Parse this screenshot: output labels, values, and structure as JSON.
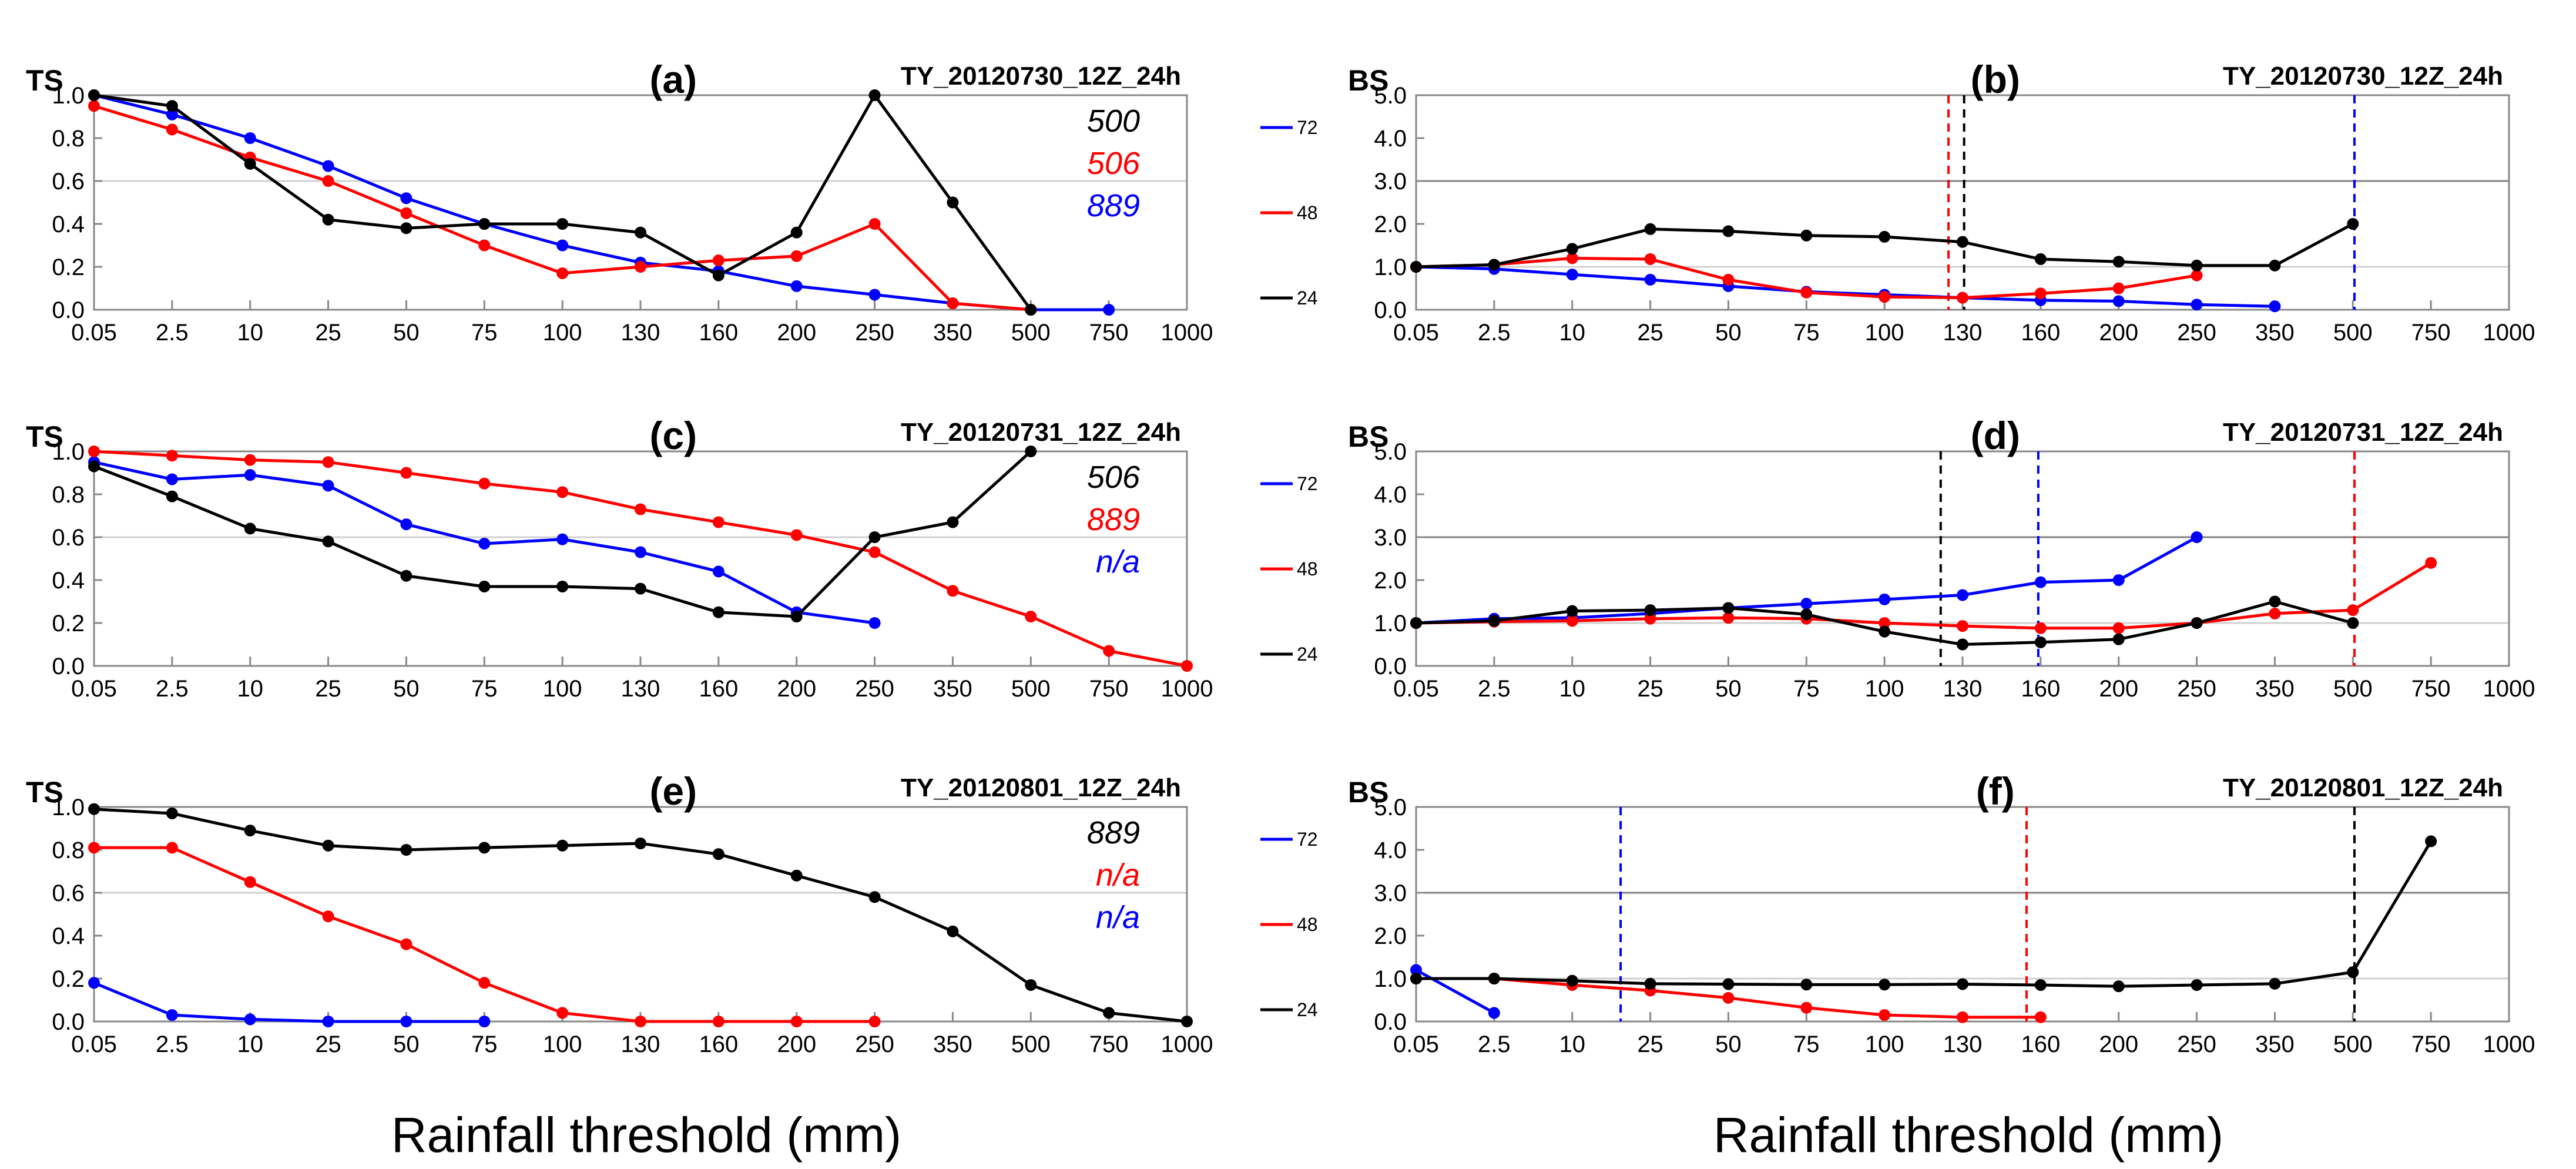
{
  "colors": {
    "72": "#0000ff",
    "48": "#ff0000",
    "24": "#000000",
    "axis": "#888888",
    "grid": "#d0d0d0",
    "refline": "#808080"
  },
  "xlabels": {
    "left": "Rainfall threshold (mm)",
    "right": "Rainfall threshold (mm)"
  },
  "chart_data": [
    {
      "id": "a",
      "type": "line",
      "title": "TS",
      "panel_label": "(a)",
      "run": "TY_20120730_12Z_24h",
      "categories": [
        "0.05",
        "2.5",
        "10",
        "25",
        "50",
        "75",
        "100",
        "130",
        "160",
        "200",
        "250",
        "350",
        "500",
        "750",
        "1000"
      ],
      "ylim": [
        0,
        1.0
      ],
      "yticks": [
        "0.0",
        "0.2",
        "0.4",
        "0.6",
        "0.8",
        "1.0"
      ],
      "grid_y": [
        0.6
      ],
      "ref_y": null,
      "annotations": [
        {
          "text": "500",
          "color": "#000000"
        },
        {
          "text": "506",
          "color": "#ff0000"
        },
        {
          "text": "889",
          "color": "#0000ff"
        }
      ],
      "legend": [
        "72",
        "48",
        "24"
      ],
      "vlines": [],
      "series": [
        {
          "name": "72",
          "color": "#0000ff",
          "values": [
            1.0,
            0.91,
            0.8,
            0.67,
            0.52,
            0.4,
            0.3,
            0.22,
            0.18,
            0.11,
            0.07,
            0.03,
            0.0,
            0.0,
            null
          ]
        },
        {
          "name": "48",
          "color": "#ff0000",
          "values": [
            0.95,
            0.84,
            0.71,
            0.6,
            0.45,
            0.3,
            0.17,
            0.2,
            0.23,
            0.25,
            0.4,
            0.03,
            0.0,
            null,
            null
          ]
        },
        {
          "name": "24",
          "color": "#000000",
          "values": [
            1.0,
            0.95,
            0.68,
            0.42,
            0.38,
            0.4,
            0.4,
            0.36,
            0.16,
            0.36,
            1.0,
            0.5,
            0.0,
            null,
            null
          ]
        }
      ]
    },
    {
      "id": "b",
      "type": "line",
      "title": "BS",
      "panel_label": "(b)",
      "run": "TY_20120730_12Z_24h",
      "categories": [
        "0.05",
        "2.5",
        "10",
        "25",
        "50",
        "75",
        "100",
        "130",
        "160",
        "200",
        "250",
        "350",
        "500",
        "750",
        "1000"
      ],
      "ylim": [
        0,
        5.0
      ],
      "yticks": [
        "0.0",
        "1.0",
        "2.0",
        "3.0",
        "4.0",
        "5.0"
      ],
      "grid_y": [
        1.0
      ],
      "ref_y": 3.0,
      "annotations": [],
      "legend": [],
      "vlines": [
        {
          "x": 6.82,
          "color": "#ff0000"
        },
        {
          "x": 7.02,
          "color": "#000000"
        },
        {
          "x": 12.02,
          "color": "#0000ff"
        }
      ],
      "series": [
        {
          "name": "72",
          "color": "#0000ff",
          "values": [
            1.0,
            0.95,
            0.82,
            0.7,
            0.55,
            0.42,
            0.35,
            0.28,
            0.22,
            0.2,
            0.12,
            0.08,
            null,
            null,
            null
          ]
        },
        {
          "name": "48",
          "color": "#ff0000",
          "values": [
            1.0,
            1.05,
            1.2,
            1.18,
            0.7,
            0.4,
            0.3,
            0.28,
            0.38,
            0.5,
            0.8,
            null,
            null,
            null,
            null
          ]
        },
        {
          "name": "24",
          "color": "#000000",
          "values": [
            1.0,
            1.05,
            1.42,
            1.88,
            1.83,
            1.73,
            1.7,
            1.58,
            1.18,
            1.12,
            1.03,
            1.03,
            2.0,
            null,
            null
          ]
        }
      ]
    },
    {
      "id": "c",
      "type": "line",
      "title": "TS",
      "panel_label": "(c)",
      "run": "TY_20120731_12Z_24h",
      "categories": [
        "0.05",
        "2.5",
        "10",
        "25",
        "50",
        "75",
        "100",
        "130",
        "160",
        "200",
        "250",
        "350",
        "500",
        "750",
        "1000"
      ],
      "ylim": [
        0,
        1.0
      ],
      "yticks": [
        "0.0",
        "0.2",
        "0.4",
        "0.6",
        "0.8",
        "1.0"
      ],
      "grid_y": [
        0.6
      ],
      "ref_y": null,
      "annotations": [
        {
          "text": "506",
          "color": "#000000"
        },
        {
          "text": "889",
          "color": "#ff0000"
        },
        {
          "text": "n/a",
          "color": "#0000ff"
        }
      ],
      "legend": [
        "72",
        "48",
        "24"
      ],
      "vlines": [],
      "series": [
        {
          "name": "72",
          "color": "#0000ff",
          "values": [
            0.95,
            0.87,
            0.89,
            0.84,
            0.66,
            0.57,
            0.59,
            0.53,
            0.44,
            0.25,
            0.2,
            null,
            null,
            null,
            null
          ]
        },
        {
          "name": "48",
          "color": "#ff0000",
          "values": [
            1.0,
            0.98,
            0.96,
            0.95,
            0.9,
            0.85,
            0.81,
            0.73,
            0.67,
            0.61,
            0.53,
            0.35,
            0.23,
            0.07,
            0.0
          ]
        },
        {
          "name": "24",
          "color": "#000000",
          "values": [
            0.93,
            0.79,
            0.64,
            0.58,
            0.42,
            0.37,
            0.37,
            0.36,
            0.25,
            0.23,
            0.6,
            0.67,
            1.0,
            null,
            null
          ]
        }
      ]
    },
    {
      "id": "d",
      "type": "line",
      "title": "BS",
      "panel_label": "(d)",
      "run": "TY_20120731_12Z_24h",
      "categories": [
        "0.05",
        "2.5",
        "10",
        "25",
        "50",
        "75",
        "100",
        "130",
        "160",
        "200",
        "250",
        "350",
        "500",
        "750",
        "1000"
      ],
      "ylim": [
        0,
        5.0
      ],
      "yticks": [
        "0.0",
        "1.0",
        "2.0",
        "3.0",
        "4.0",
        "5.0"
      ],
      "grid_y": [
        1.0
      ],
      "ref_y": 3.0,
      "annotations": [],
      "legend": [],
      "vlines": [
        {
          "x": 6.72,
          "color": "#000000"
        },
        {
          "x": 7.97,
          "color": "#0000ff"
        },
        {
          "x": 12.02,
          "color": "#ff0000"
        }
      ],
      "series": [
        {
          "name": "72",
          "color": "#0000ff",
          "values": [
            1.0,
            1.1,
            1.12,
            1.22,
            1.35,
            1.45,
            1.55,
            1.65,
            1.95,
            2.0,
            3.0,
            null,
            null,
            null,
            null
          ]
        },
        {
          "name": "48",
          "color": "#ff0000",
          "values": [
            1.0,
            1.03,
            1.05,
            1.1,
            1.12,
            1.1,
            1.0,
            0.93,
            0.88,
            0.88,
            1.0,
            1.22,
            1.3,
            2.4,
            null
          ]
        },
        {
          "name": "24",
          "color": "#000000",
          "values": [
            1.0,
            1.05,
            1.28,
            1.3,
            1.35,
            1.2,
            0.8,
            0.5,
            0.55,
            0.62,
            1.0,
            1.5,
            1.0,
            null,
            null
          ]
        }
      ]
    },
    {
      "id": "e",
      "type": "line",
      "title": "TS",
      "panel_label": "(e)",
      "run": "TY_20120801_12Z_24h",
      "categories": [
        "0.05",
        "2.5",
        "10",
        "25",
        "50",
        "75",
        "100",
        "130",
        "160",
        "200",
        "250",
        "350",
        "500",
        "750",
        "1000"
      ],
      "ylim": [
        0,
        1.0
      ],
      "yticks": [
        "0.0",
        "0.2",
        "0.4",
        "0.6",
        "0.8",
        "1.0"
      ],
      "grid_y": [
        0.6
      ],
      "ref_y": null,
      "annotations": [
        {
          "text": "889",
          "color": "#000000"
        },
        {
          "text": "n/a",
          "color": "#ff0000"
        },
        {
          "text": "n/a",
          "color": "#0000ff"
        }
      ],
      "legend": [
        "72",
        "48",
        "24"
      ],
      "vlines": [],
      "series": [
        {
          "name": "72",
          "color": "#0000ff",
          "values": [
            0.18,
            0.03,
            0.01,
            0.0,
            0.0,
            0.0,
            null,
            null,
            null,
            null,
            null,
            null,
            null,
            null,
            null
          ]
        },
        {
          "name": "48",
          "color": "#ff0000",
          "values": [
            0.81,
            0.81,
            0.65,
            0.49,
            0.36,
            0.18,
            0.04,
            0.0,
            0.0,
            0.0,
            0.0,
            null,
            null,
            null,
            null
          ]
        },
        {
          "name": "24",
          "color": "#000000",
          "values": [
            0.99,
            0.97,
            0.89,
            0.82,
            0.8,
            0.81,
            0.82,
            0.83,
            0.78,
            0.68,
            0.58,
            0.42,
            0.17,
            0.04,
            0.0
          ]
        }
      ]
    },
    {
      "id": "f",
      "type": "line",
      "title": "BS",
      "panel_label": "(f)",
      "run": "TY_20120801_12Z_24h",
      "categories": [
        "0.05",
        "2.5",
        "10",
        "25",
        "50",
        "75",
        "100",
        "130",
        "160",
        "200",
        "250",
        "350",
        "500",
        "750",
        "1000"
      ],
      "ylim": [
        0,
        5.0
      ],
      "yticks": [
        "0.0",
        "1.0",
        "2.0",
        "3.0",
        "4.0",
        "5.0"
      ],
      "grid_y": [
        1.0
      ],
      "ref_y": 3.0,
      "annotations": [],
      "legend": [],
      "vlines": [
        {
          "x": 2.62,
          "color": "#0000ff"
        },
        {
          "x": 7.82,
          "color": "#ff0000"
        },
        {
          "x": 12.02,
          "color": "#000000"
        }
      ],
      "series": [
        {
          "name": "72",
          "color": "#0000ff",
          "values": [
            1.2,
            0.2,
            null,
            null,
            null,
            null,
            null,
            null,
            null,
            null,
            null,
            null,
            null,
            null,
            null
          ]
        },
        {
          "name": "48",
          "color": "#ff0000",
          "values": [
            1.0,
            1.0,
            0.85,
            0.72,
            0.55,
            0.32,
            0.15,
            0.1,
            0.1,
            null,
            null,
            null,
            null,
            null,
            null
          ]
        },
        {
          "name": "24",
          "color": "#000000",
          "values": [
            1.0,
            1.0,
            0.95,
            0.88,
            0.87,
            0.86,
            0.86,
            0.87,
            0.85,
            0.82,
            0.85,
            0.88,
            1.15,
            4.2,
            null
          ]
        }
      ]
    }
  ]
}
